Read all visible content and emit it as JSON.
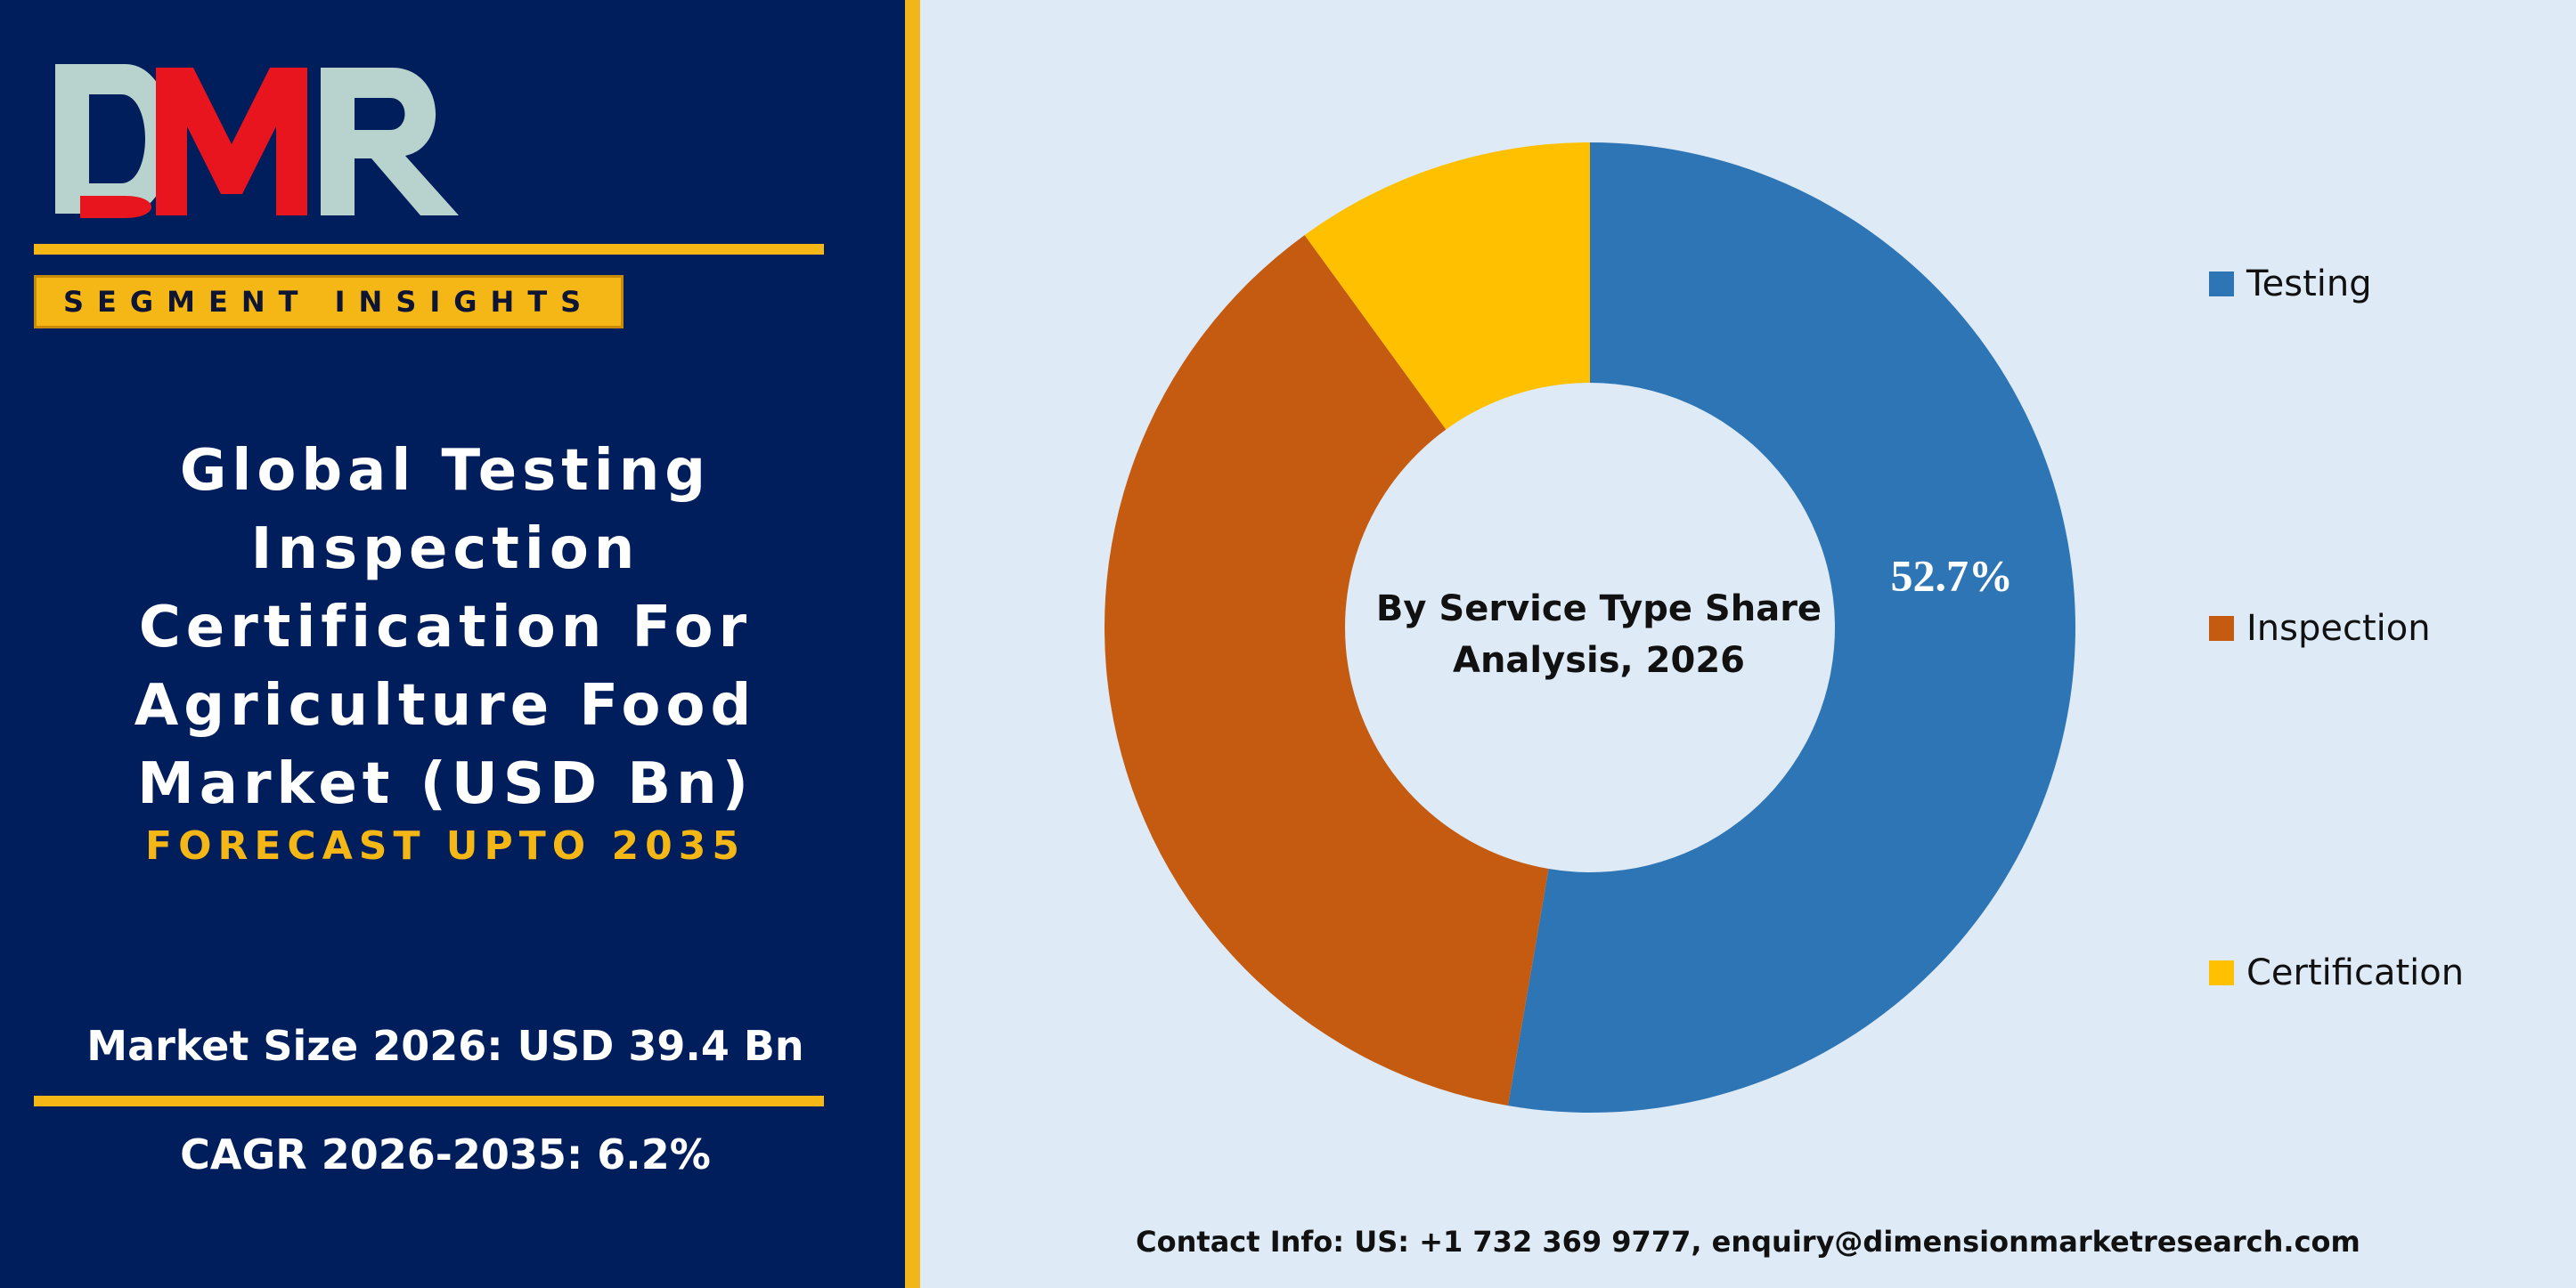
{
  "branding": {
    "logo_text": "DMR",
    "badge": "SEGMENT INSIGHTS"
  },
  "report": {
    "title": "Global Testing\nInspection\nCertification For\nAgriculture Food\nMarket (USD Bn)",
    "forecast": "FORECAST UPTO 2035",
    "market_size": "Market Size 2026: USD 39.4 Bn",
    "cagr": "CAGR 2026-2035: 6.2%"
  },
  "contact": "Contact Info: US: +1 732 369 9777, enquiry@dimensionmarketresearch.com",
  "colors": {
    "navy": "#001e5c",
    "gold": "#f5b716",
    "background": "#deeaf5"
  },
  "chart_data": {
    "type": "pie",
    "variant": "donut",
    "center_label": "By Service Type Share Analysis, 2026",
    "legend_position": "right",
    "categories": [
      "Testing",
      "Inspection",
      "Certification"
    ],
    "values": [
      52.7,
      37.3,
      10.0
    ],
    "data_labels": [
      "52.7%",
      "",
      ""
    ],
    "colors": [
      "#2e75b6",
      "#c55a11",
      "#ffc000"
    ]
  }
}
